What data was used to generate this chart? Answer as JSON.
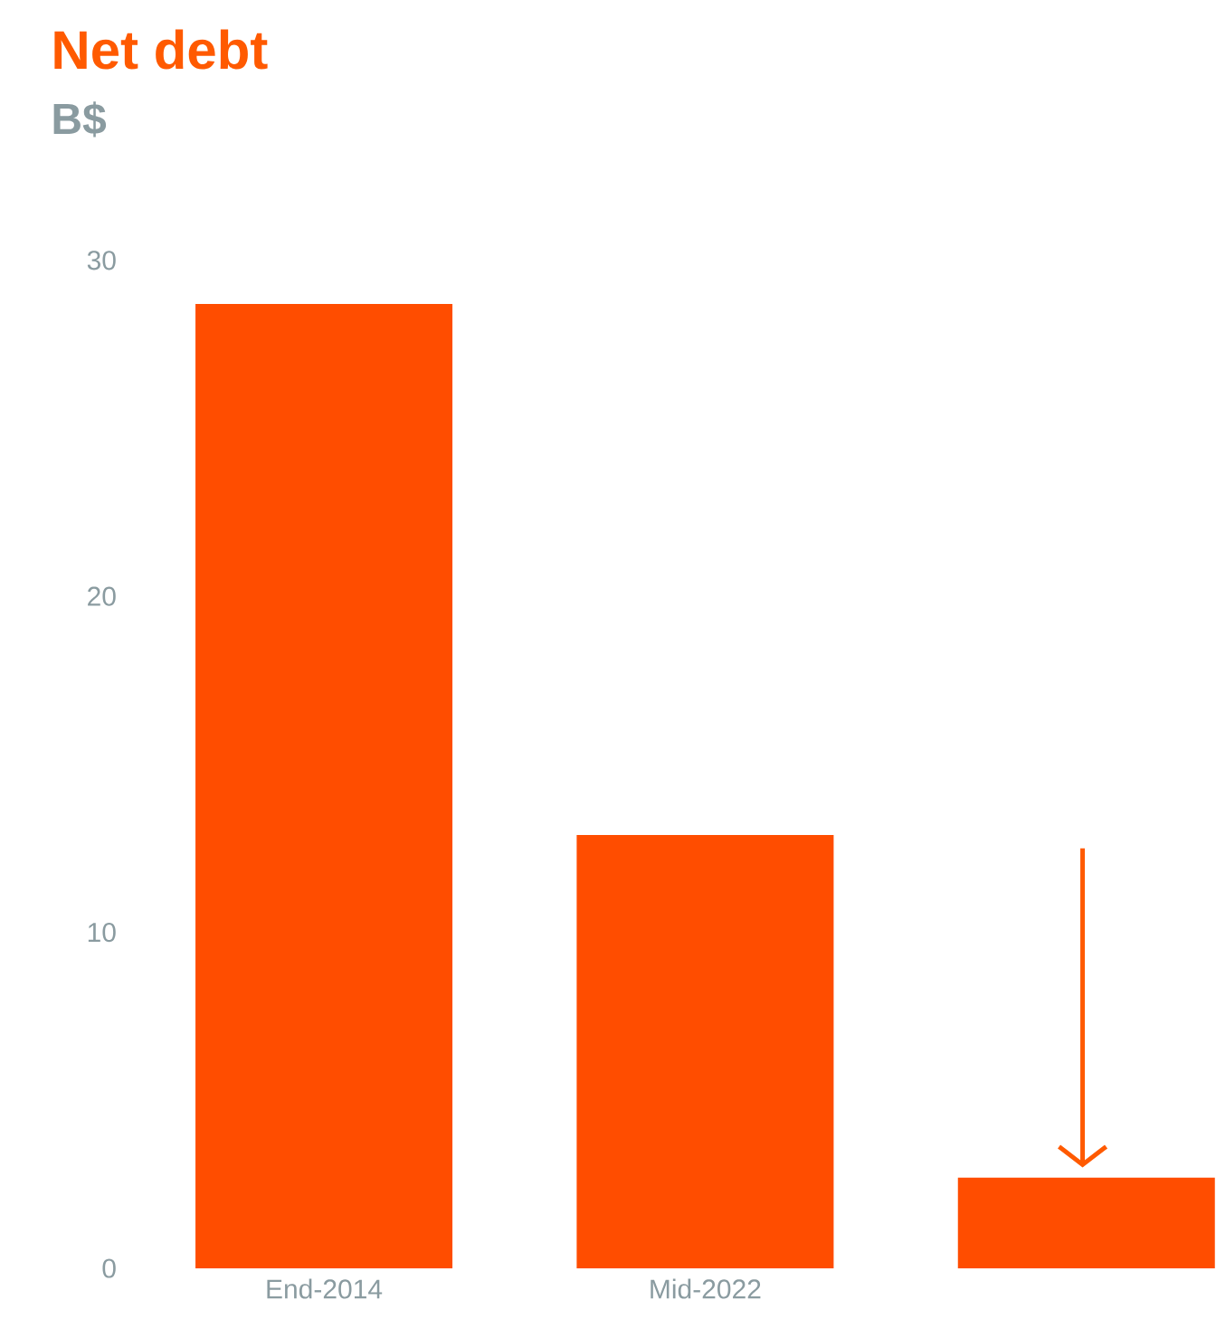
{
  "chart_data": {
    "type": "bar",
    "title": "Net debt",
    "subtitle": "B$",
    "categories": [
      "End-2014",
      "Mid-2022",
      null
    ],
    "values": [
      28.7,
      12.9,
      2.7
    ],
    "color": "#ff4d00",
    "ylim": [
      0,
      30
    ],
    "yticks": [
      0,
      10,
      20,
      30
    ]
  }
}
